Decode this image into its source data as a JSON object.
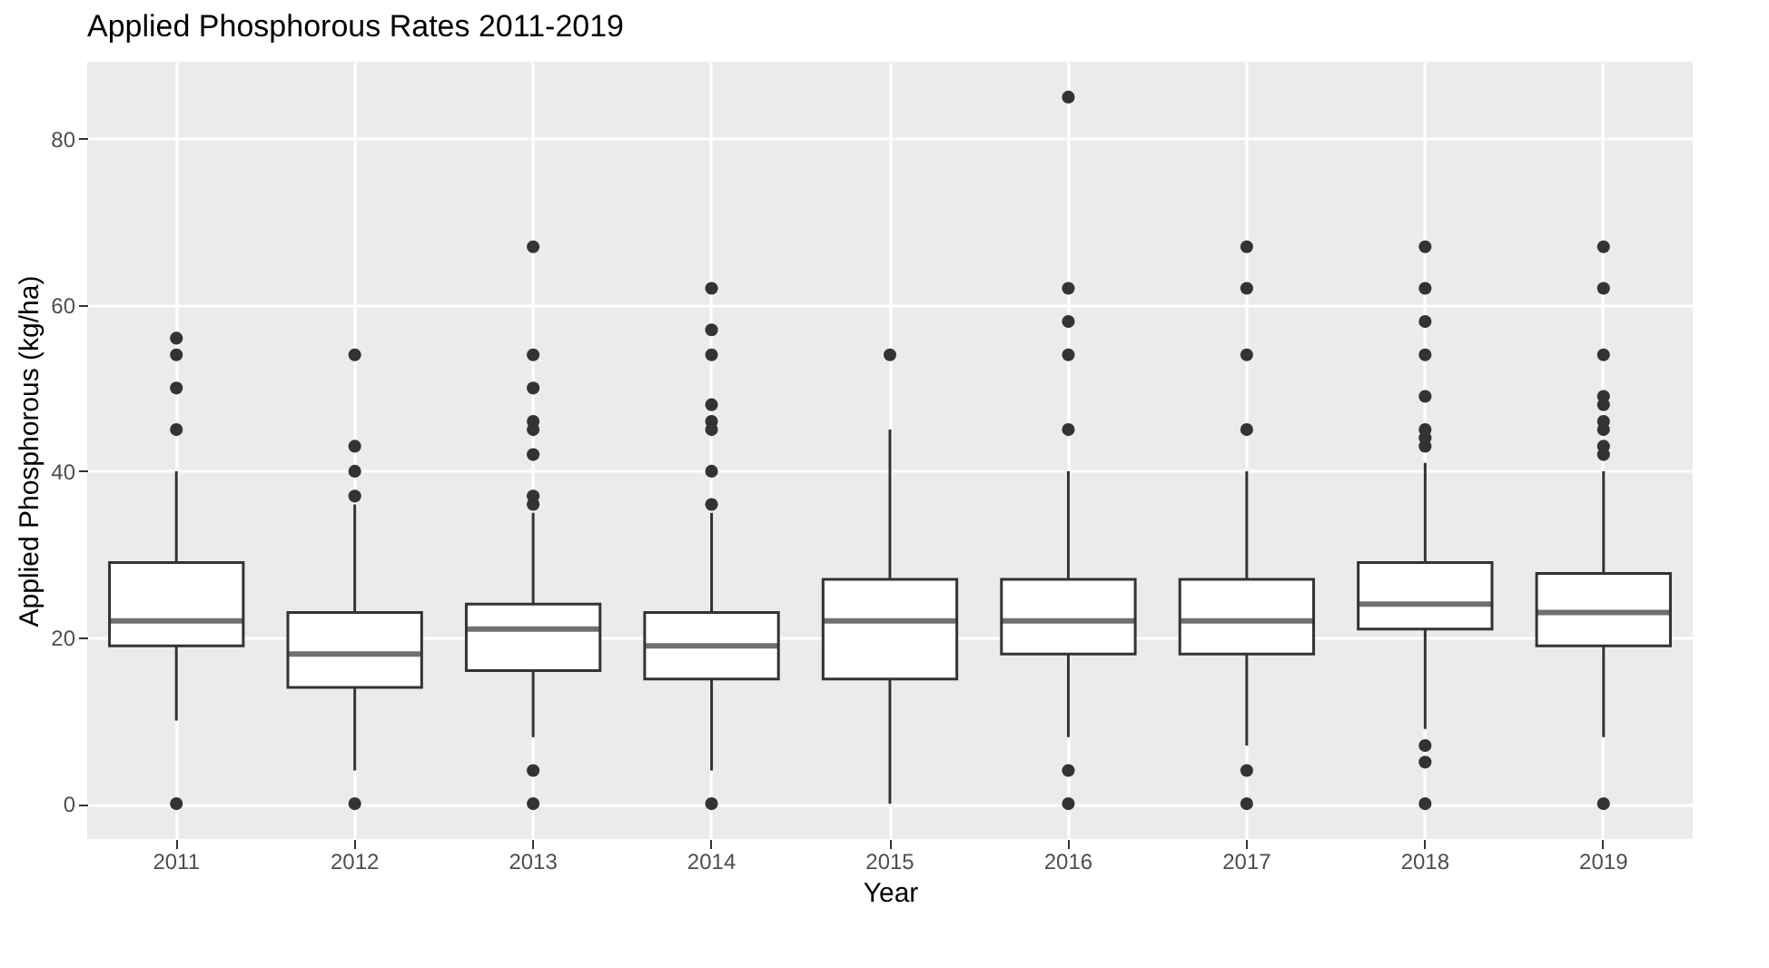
{
  "chart_data": {
    "type": "box",
    "title": "Applied Phosphorous Rates 2011-2019",
    "xlabel": "Year",
    "ylabel": "Applied Phosphorous (kg/ha)",
    "categories": [
      "2011",
      "2012",
      "2013",
      "2014",
      "2015",
      "2016",
      "2017",
      "2018",
      "2019"
    ],
    "boxes": [
      {
        "low": 10,
        "q1": 19,
        "median": 22,
        "q3": 29,
        "high": 40,
        "outliers": [
          0,
          45,
          50,
          54,
          56
        ]
      },
      {
        "low": 4,
        "q1": 14,
        "median": 18,
        "q3": 23,
        "high": 36,
        "outliers": [
          0,
          37,
          40,
          43,
          54
        ]
      },
      {
        "low": 8,
        "q1": 16,
        "median": 21,
        "q3": 24,
        "high": 35,
        "outliers": [
          0,
          4,
          36,
          37,
          42,
          45,
          46,
          50,
          54,
          67
        ]
      },
      {
        "low": 4,
        "q1": 15,
        "median": 19,
        "q3": 23,
        "high": 35,
        "outliers": [
          0,
          36,
          40,
          45,
          46,
          48,
          54,
          57,
          62
        ]
      },
      {
        "low": 0,
        "q1": 15,
        "median": 22,
        "q3": 27,
        "high": 45,
        "outliers": [
          54
        ]
      },
      {
        "low": 8,
        "q1": 18,
        "median": 22,
        "q3": 27,
        "high": 40,
        "outliers": [
          0,
          4,
          45,
          54,
          58,
          62,
          85
        ]
      },
      {
        "low": 7,
        "q1": 18,
        "median": 22,
        "q3": 27,
        "high": 40,
        "outliers": [
          0,
          4,
          45,
          54,
          62,
          67
        ]
      },
      {
        "low": 9,
        "q1": 21,
        "median": 24,
        "q3": 29,
        "high": 41,
        "outliers": [
          0,
          5,
          7,
          43,
          44,
          45,
          49,
          54,
          58,
          62,
          67
        ]
      },
      {
        "low": 8,
        "q1": 19,
        "median": 23,
        "q3": 27.7,
        "high": 40,
        "outliers": [
          0,
          42,
          43,
          45,
          46,
          48,
          49,
          54,
          62,
          67
        ]
      }
    ],
    "ylim": [
      -4.25,
      89.25
    ],
    "yticks": [
      0,
      20,
      40,
      60,
      80
    ],
    "grid": true
  }
}
